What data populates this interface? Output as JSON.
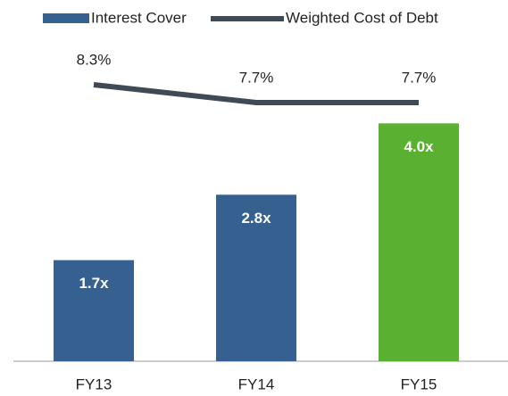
{
  "chart_data": {
    "type": "bar-line",
    "categories": [
      "FY13",
      "FY14",
      "FY15"
    ],
    "series": [
      {
        "name": "Interest Cover",
        "type": "bar",
        "color": "#36608f",
        "colors": [
          "#36608f",
          "#36608f",
          "#5ab031"
        ],
        "values": [
          1.7,
          2.8,
          4.0
        ],
        "value_labels": [
          "1.7x",
          "2.8x",
          "4.0x"
        ]
      },
      {
        "name": "Weighted Cost of Debt",
        "type": "line",
        "axis": "y2",
        "color": "#3f4a55",
        "values": [
          8.3,
          7.7,
          7.7
        ],
        "value_labels": [
          "8.3%",
          "7.7%",
          "7.7%"
        ]
      }
    ],
    "ylim": [
      0,
      6
    ],
    "y2lim": [
      -1,
      11
    ],
    "legend": "top"
  }
}
